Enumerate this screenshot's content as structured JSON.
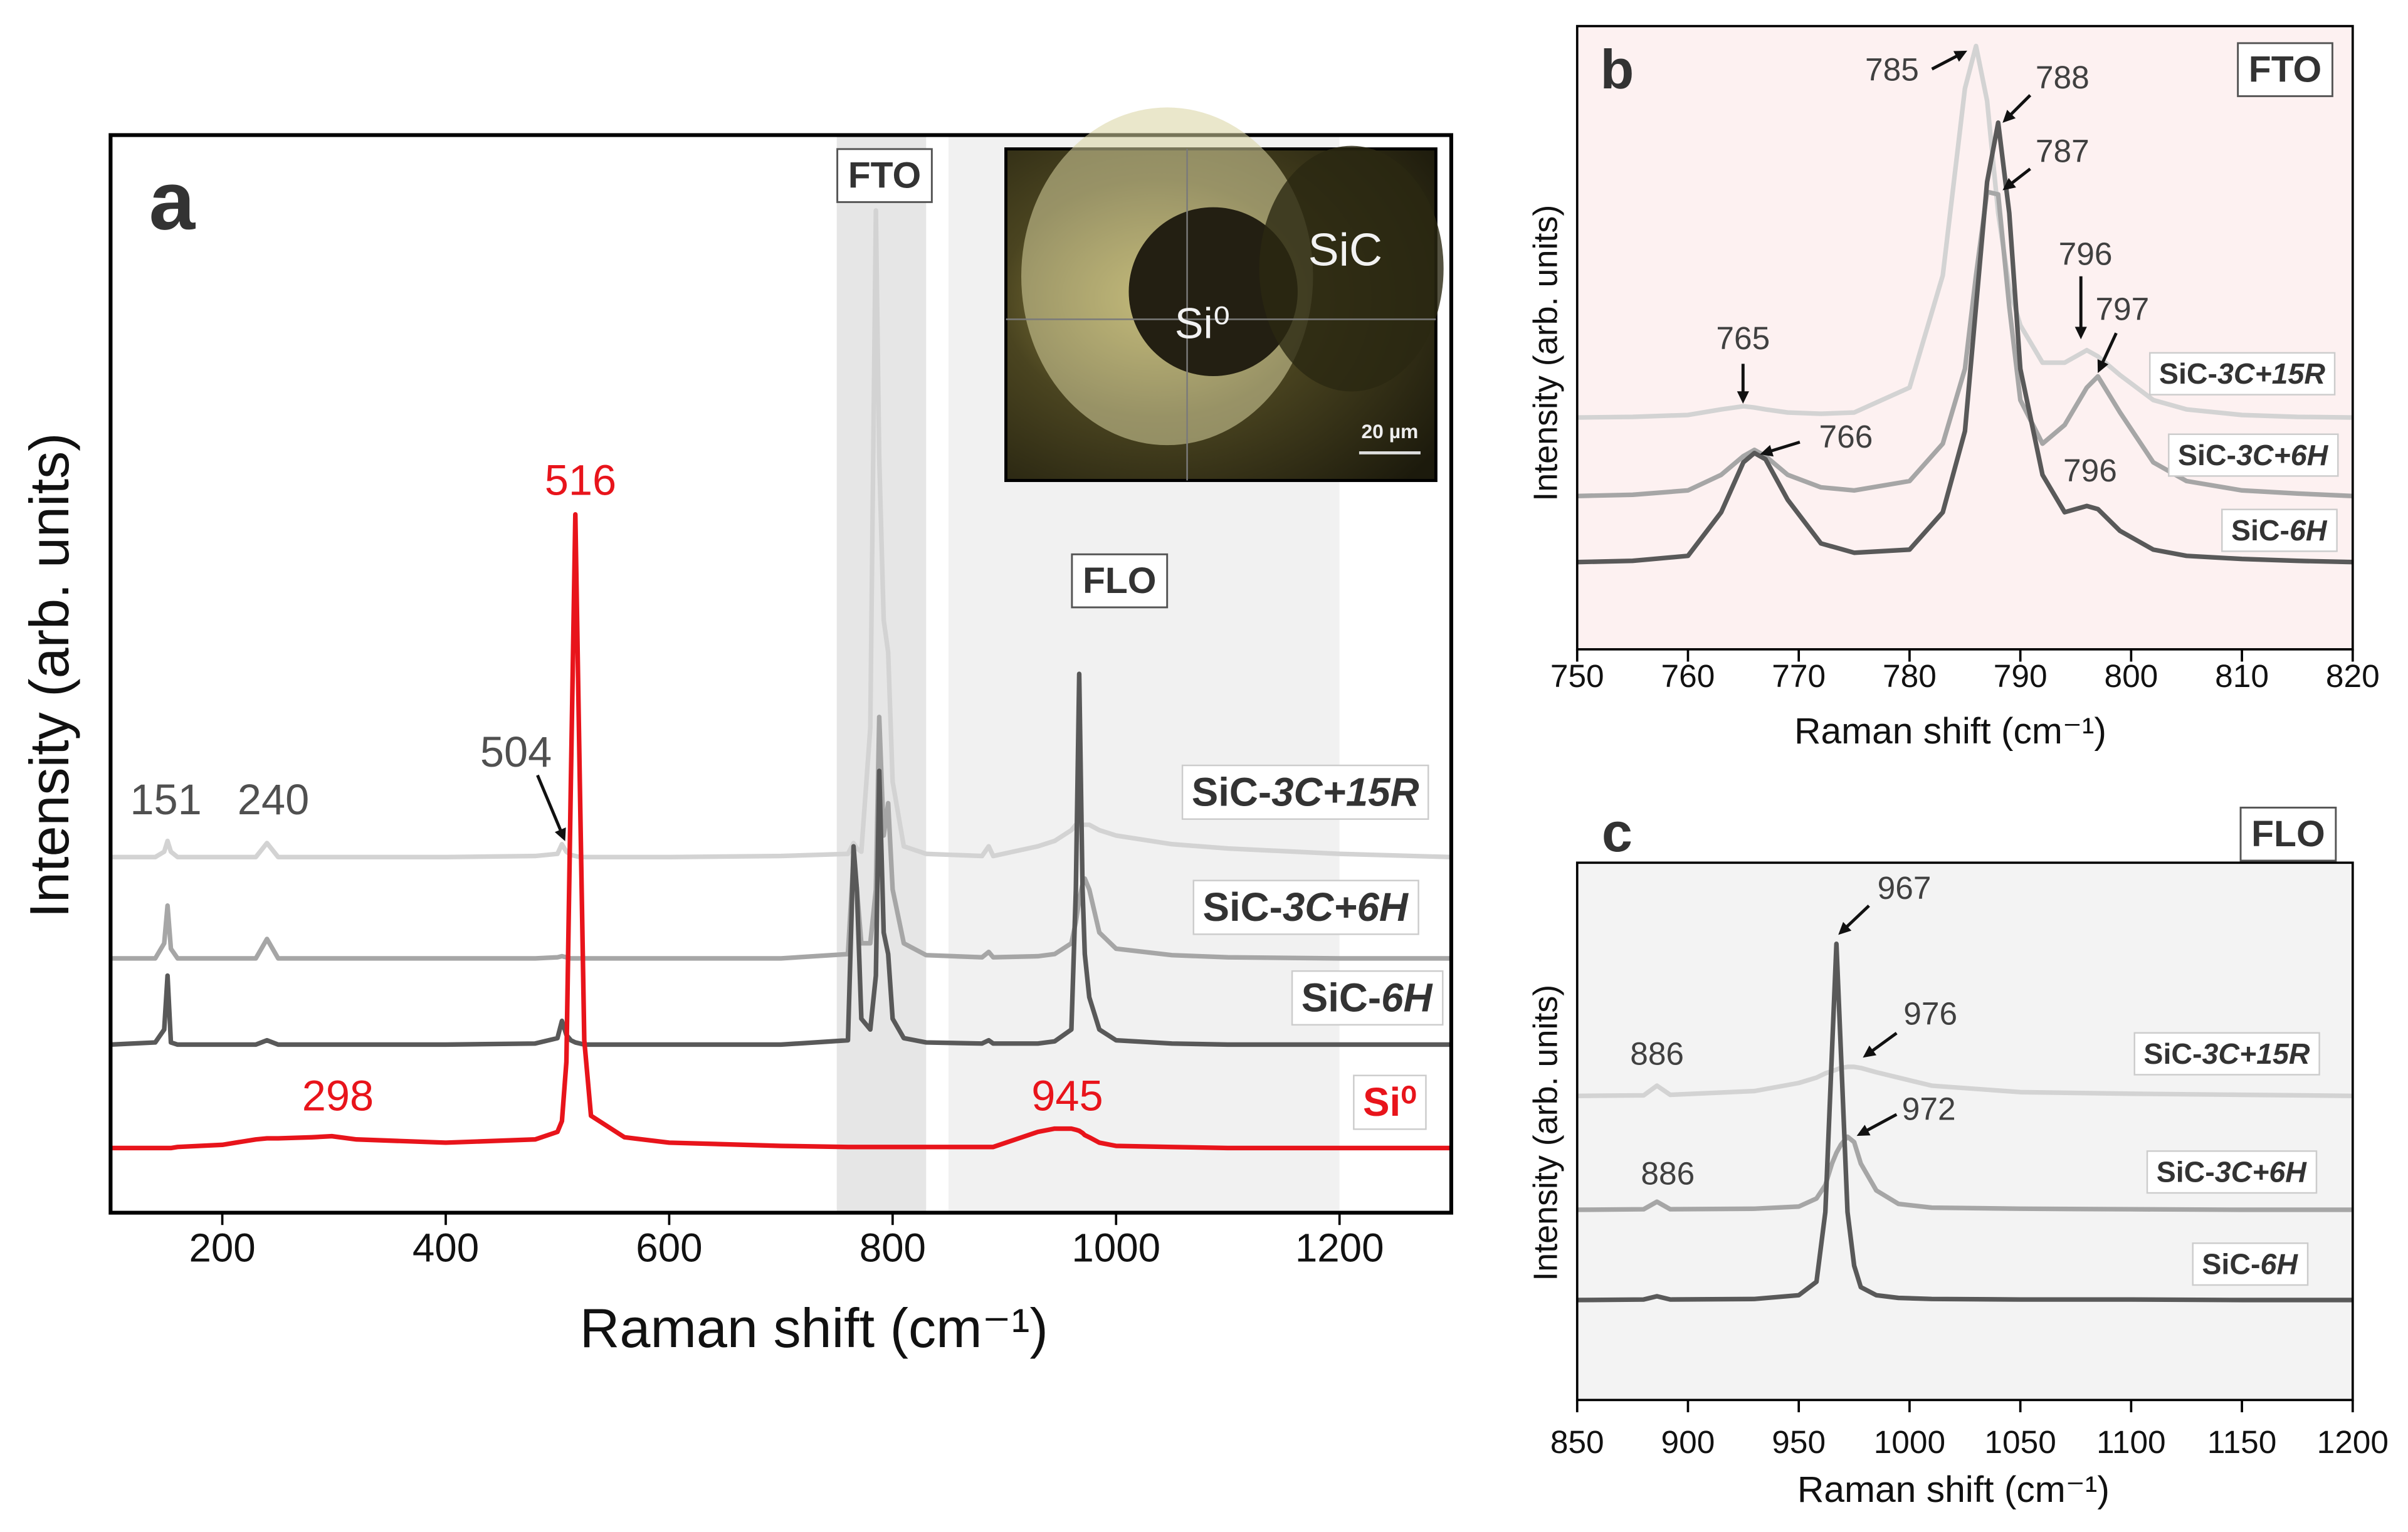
{
  "chart_data": [
    {
      "type": "line",
      "panel_label": "a",
      "xlabel": "Raman shift (cm⁻¹)",
      "ylabel": "Intensity (arb. units)",
      "xlim": [
        100,
        1300
      ],
      "ylim": [
        0,
        100
      ],
      "xticks": [
        200,
        400,
        600,
        800,
        1000,
        1200
      ],
      "shaded_regions": [
        {
          "label": "FTO",
          "range": [
            750,
            830
          ],
          "color": "#e6e6e6"
        },
        {
          "label": "FLO",
          "range": [
            850,
            1200
          ],
          "color": "#f1f1f1"
        }
      ],
      "x": [
        100,
        140,
        148,
        151,
        154,
        160,
        200,
        230,
        240,
        250,
        280,
        298,
        320,
        400,
        480,
        500,
        504,
        508,
        512,
        516,
        520,
        524,
        530,
        560,
        600,
        700,
        760,
        765,
        768,
        772,
        780,
        785,
        788,
        792,
        796,
        800,
        810,
        830,
        880,
        886,
        890,
        930,
        945,
        960,
        964,
        967,
        970,
        972,
        976,
        985,
        1000,
        1050,
        1100,
        1200,
        1300
      ],
      "series": [
        {
          "name": "SiC-3C+15R",
          "color": "#d3d3d3",
          "values": [
            33,
            33,
            33.5,
            34.5,
            33.5,
            33,
            33,
            33,
            34.3,
            33,
            33,
            33,
            33,
            33,
            33.1,
            33.3,
            34.2,
            33.5,
            33.2,
            33.1,
            33,
            33,
            33,
            33,
            33,
            33.1,
            33.3,
            34.3,
            33.8,
            33.5,
            45,
            93,
            70,
            55,
            52,
            40,
            34,
            33.3,
            33.1,
            34,
            33.1,
            34,
            34.5,
            35.5,
            36,
            36,
            36,
            36,
            36,
            35.5,
            35,
            34.2,
            33.8,
            33.3,
            33
          ]
        },
        {
          "name": "SiC-3C+6H",
          "color": "#a6a6a6",
          "values": [
            23.6,
            23.6,
            25,
            28.5,
            24.5,
            23.6,
            23.6,
            23.6,
            25.4,
            23.6,
            23.6,
            23.6,
            23.6,
            23.6,
            23.6,
            23.7,
            23.8,
            23.7,
            23.6,
            23.6,
            23.6,
            23.6,
            23.6,
            23.6,
            23.6,
            23.6,
            24,
            33,
            30,
            25,
            25,
            30,
            46,
            35,
            38,
            30,
            25,
            23.9,
            23.7,
            24.2,
            23.7,
            23.8,
            24,
            25,
            27,
            29,
            30.5,
            31,
            30,
            26,
            24.5,
            23.9,
            23.7,
            23.6,
            23.6
          ]
        },
        {
          "name": "SiC-6H",
          "color": "#595959",
          "values": [
            15.6,
            15.8,
            17,
            22,
            15.8,
            15.6,
            15.6,
            15.6,
            16,
            15.6,
            15.6,
            15.6,
            15.6,
            15.6,
            15.7,
            16.2,
            17.8,
            16.5,
            16,
            15.8,
            15.7,
            15.6,
            15.6,
            15.6,
            15.6,
            15.6,
            16,
            34,
            30,
            18,
            17,
            22,
            41,
            26,
            24,
            18,
            16.2,
            15.8,
            15.7,
            16,
            15.7,
            15.7,
            15.9,
            17,
            30,
            50,
            30,
            24,
            20,
            17,
            16,
            15.7,
            15.6,
            15.6,
            15.6
          ]
        },
        {
          "name": "Si⁰",
          "color": "#e8141b",
          "values": [
            6,
            6,
            6,
            6,
            6,
            6.1,
            6.3,
            6.8,
            6.9,
            6.9,
            7,
            7.1,
            6.8,
            6.5,
            6.8,
            7.5,
            8.5,
            14,
            40,
            64.8,
            40,
            16,
            9,
            7,
            6.5,
            6.2,
            6.1,
            6.1,
            6.1,
            6.1,
            6.1,
            6.1,
            6.1,
            6.1,
            6.1,
            6.1,
            6.1,
            6.1,
            6.1,
            6.1,
            6.1,
            7.5,
            7.8,
            7.8,
            7.7,
            7.6,
            7.4,
            7.2,
            7,
            6.5,
            6.2,
            6.1,
            6,
            6,
            6
          ]
        }
      ],
      "annotations": [
        {
          "text": "151",
          "color": "#505050"
        },
        {
          "text": "240",
          "color": "#505050"
        },
        {
          "text": "504",
          "color": "#505050"
        },
        {
          "text": "516",
          "color": "#e8141b"
        },
        {
          "text": "298",
          "color": "#e8141b"
        },
        {
          "text": "945",
          "color": "#e8141b"
        }
      ],
      "inset": {
        "labels": [
          "SiC",
          "Si⁰",
          "20 µm"
        ]
      }
    },
    {
      "type": "line",
      "panel_label": "b",
      "xlabel": "Raman shift (cm⁻¹)",
      "ylabel": "Intensity (arb. units)",
      "box_label": "FTO",
      "background": "#fdf1f1",
      "xlim": [
        750,
        820
      ],
      "ylim": [
        0,
        100
      ],
      "xticks": [
        750,
        760,
        770,
        780,
        790,
        800,
        810,
        820
      ],
      "x": [
        750,
        755,
        760,
        763,
        765,
        766,
        767,
        769,
        772,
        775,
        780,
        783,
        785,
        786,
        787,
        788,
        789,
        790,
        792,
        794,
        796,
        797,
        799,
        802,
        805,
        810,
        815,
        820
      ],
      "series": [
        {
          "name": "SiC-3C+15R",
          "color": "#d3d3d3",
          "values": [
            37.2,
            37.3,
            37.6,
            38.5,
            39,
            38.8,
            38.5,
            38,
            37.8,
            38,
            42,
            60,
            90,
            96.8,
            88,
            70,
            58,
            52,
            46,
            46,
            48,
            47,
            44,
            40,
            38.5,
            37.6,
            37.3,
            37.2
          ]
        },
        {
          "name": "SiC-3C+6H",
          "color": "#a6a6a6",
          "values": [
            24.6,
            24.8,
            25.5,
            28,
            31,
            32,
            31,
            28,
            26,
            25.5,
            27,
            33,
            45,
            60,
            73.4,
            73,
            55,
            40,
            33,
            36,
            42,
            43.8,
            38,
            30,
            27,
            25.5,
            25,
            24.6
          ]
        },
        {
          "name": "SiC-6H",
          "color": "#595959",
          "values": [
            14,
            14.2,
            15,
            22,
            30,
            31.5,
            30.5,
            24,
            17,
            15.5,
            16,
            22,
            35,
            55,
            75,
            84.5,
            70,
            45,
            28,
            22,
            23,
            22.5,
            19,
            16,
            15,
            14.5,
            14.2,
            14
          ]
        }
      ],
      "annotations": [
        {
          "text": "765",
          "color": "#404040"
        },
        {
          "text": "766",
          "color": "#404040"
        },
        {
          "text": "785",
          "color": "#404040"
        },
        {
          "text": "788",
          "color": "#404040"
        },
        {
          "text": "787",
          "color": "#404040"
        },
        {
          "text": "796",
          "color": "#404040"
        },
        {
          "text": "797",
          "color": "#404040"
        },
        {
          "text": "796",
          "color": "#404040"
        }
      ]
    },
    {
      "type": "line",
      "panel_label": "c",
      "xlabel": "Raman shift (cm⁻¹)",
      "ylabel": "Intensity (arb. units)",
      "box_label": "FLO",
      "background": "#f3f3f3",
      "xlim": [
        850,
        1200
      ],
      "ylim": [
        0,
        100
      ],
      "xticks": [
        850,
        900,
        950,
        1000,
        1050,
        1100,
        1150,
        1200
      ],
      "x": [
        850,
        880,
        886,
        892,
        930,
        950,
        958,
        962,
        965,
        967,
        969,
        972,
        975,
        978,
        985,
        995,
        1010,
        1050,
        1100,
        1150,
        1200
      ],
      "series": [
        {
          "name": "SiC-3C+15R",
          "color": "#d3d3d3",
          "values": [
            56.6,
            56.7,
            58.5,
            56.8,
            57.5,
            59,
            60,
            60.8,
            61.2,
            61.5,
            61.8,
            62,
            62,
            61.8,
            61,
            60,
            58.5,
            57.3,
            57,
            56.8,
            56.6
          ]
        },
        {
          "name": "SiC-3C+6H",
          "color": "#a6a6a6",
          "values": [
            35.4,
            35.5,
            36.9,
            35.5,
            35.6,
            36,
            37.5,
            40,
            44,
            46,
            47.5,
            49,
            48,
            44,
            39,
            36.5,
            35.8,
            35.6,
            35.5,
            35.4,
            35.4
          ]
        },
        {
          "name": "SiC-6H",
          "color": "#595959",
          "values": [
            18.6,
            18.7,
            19.3,
            18.7,
            18.8,
            19.5,
            22,
            35,
            65,
            84.9,
            65,
            35,
            25,
            21,
            19.5,
            19,
            18.8,
            18.7,
            18.7,
            18.6,
            18.6
          ]
        }
      ],
      "annotations": [
        {
          "text": "886",
          "color": "#404040"
        },
        {
          "text": "967",
          "color": "#404040"
        },
        {
          "text": "976",
          "color": "#404040"
        },
        {
          "text": "972",
          "color": "#404040"
        },
        {
          "text": "886",
          "color": "#404040"
        }
      ]
    }
  ]
}
